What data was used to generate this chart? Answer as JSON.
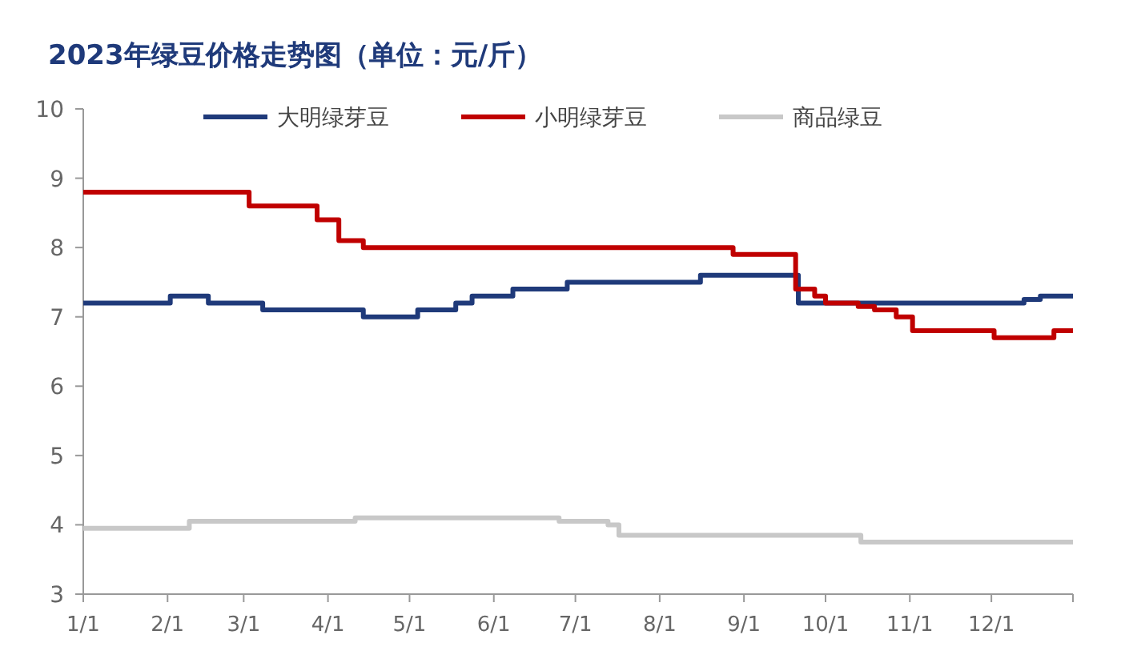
{
  "chart_data": {
    "type": "step",
    "title": "2023年绿豆价格走势图（单位：元/斤）",
    "xlim": [
      "2023-01-01",
      "2023-12-31"
    ],
    "xticks": [
      {
        "value": "2023-01-01",
        "label": "1/1"
      },
      {
        "value": "2023-02-01",
        "label": "2/1"
      },
      {
        "value": "2023-03-01",
        "label": "3/1"
      },
      {
        "value": "2023-04-01",
        "label": "4/1"
      },
      {
        "value": "2023-05-01",
        "label": "5/1"
      },
      {
        "value": "2023-06-01",
        "label": "6/1"
      },
      {
        "value": "2023-07-01",
        "label": "7/1"
      },
      {
        "value": "2023-08-01",
        "label": "8/1"
      },
      {
        "value": "2023-09-01",
        "label": "9/1"
      },
      {
        "value": "2023-10-01",
        "label": "10/1"
      },
      {
        "value": "2023-11-01",
        "label": "11/1"
      },
      {
        "value": "2023-12-01",
        "label": "12/1"
      },
      {
        "value": "2023-12-31",
        "label": null
      }
    ],
    "ylim": [
      3,
      10
    ],
    "yticks": [
      3,
      4,
      5,
      6,
      7,
      8,
      9,
      10
    ],
    "grid": false,
    "legend": "top",
    "marker": "none",
    "line_style": "solid",
    "series": [
      {
        "name": "大明绿芽豆",
        "color": "#1f3a7a",
        "x": [
          "2023-01-01",
          "2023-02-02",
          "2023-02-16",
          "2023-03-08",
          "2023-04-14",
          "2023-05-04",
          "2023-05-18",
          "2023-05-24",
          "2023-06-08",
          "2023-06-28",
          "2023-08-16",
          "2023-09-21",
          "2023-12-13",
          "2023-12-19",
          "2023-12-31"
        ],
        "values": [
          7.2,
          7.3,
          7.2,
          7.1,
          7.0,
          7.1,
          7.2,
          7.3,
          7.4,
          7.5,
          7.6,
          7.2,
          7.25,
          7.3,
          7.3
        ]
      },
      {
        "name": "小明绿芽豆",
        "color": "#c00000",
        "x": [
          "2023-01-01",
          "2023-03-03",
          "2023-03-28",
          "2023-04-05",
          "2023-04-14",
          "2023-08-28",
          "2023-09-20",
          "2023-09-27",
          "2023-10-01",
          "2023-10-13",
          "2023-10-19",
          "2023-10-27",
          "2023-11-02",
          "2023-12-02",
          "2023-12-24",
          "2023-12-31"
        ],
        "values": [
          8.8,
          8.6,
          8.4,
          8.1,
          8.0,
          7.9,
          7.4,
          7.3,
          7.2,
          7.15,
          7.1,
          7.0,
          6.8,
          6.7,
          6.8,
          6.8
        ]
      },
      {
        "name": "商品绿豆",
        "color": "#c8c8c8",
        "x": [
          "2023-01-01",
          "2023-02-09",
          "2023-04-11",
          "2023-06-25",
          "2023-07-13",
          "2023-07-17",
          "2023-10-14",
          "2023-12-31"
        ],
        "values": [
          3.95,
          4.05,
          4.1,
          4.05,
          4.0,
          3.85,
          3.75,
          3.75
        ]
      }
    ]
  }
}
